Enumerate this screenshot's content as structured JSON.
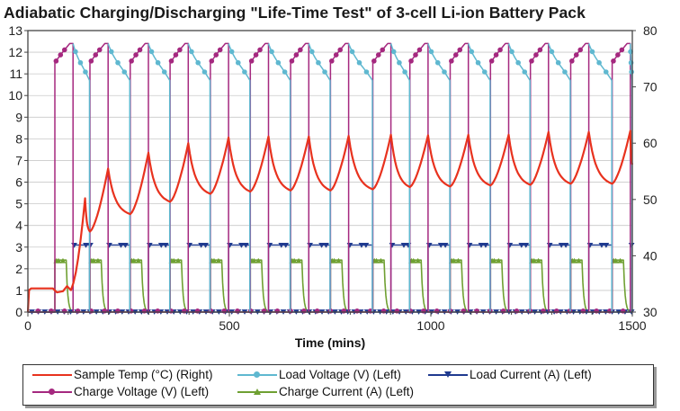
{
  "chart_data": {
    "type": "line",
    "title": "Adiabatic Charging/Discharging \"Life-Time Test\" of 3-cell Li-ion Battery Pack",
    "xlabel": "Time (mins)",
    "ylabel_left": "",
    "ylabel_right": "",
    "xlim": [
      0,
      1500
    ],
    "ylim_left": [
      0,
      13
    ],
    "ylim_right": [
      30,
      80
    ],
    "x_ticks": [
      0,
      500,
      1000,
      1500
    ],
    "y_ticks_left": [
      0,
      1,
      2,
      3,
      4,
      5,
      6,
      7,
      8,
      9,
      10,
      11,
      12,
      13
    ],
    "y_ticks_right": [
      30,
      40,
      50,
      60,
      70,
      80
    ],
    "x_minor_ticks": [
      100,
      200,
      300,
      400,
      600,
      700,
      800,
      900,
      1100,
      1200,
      1300,
      1400
    ],
    "grid": "horizontal",
    "legend_position": "bottom",
    "cycle_period_min": 99.5,
    "charge_duration_min": 45,
    "cycle_starts": [
      67,
      154,
      254,
      353,
      453,
      552,
      652,
      751,
      856,
      948,
      1048,
      1148,
      1247,
      1347,
      1450
    ],
    "temp_initial_c": 34.2,
    "temp_cycle_peaks_c": [
      50.2,
      55.5,
      58.3,
      60.0,
      61.0,
      61.2,
      61.2,
      61.3,
      61.5,
      61.4,
      61.5,
      61.5,
      62.0,
      62.0,
      62.2
    ],
    "temp_cycle_mins_c": [
      33.5,
      44.3,
      47.4,
      49.6,
      51.0,
      51.4,
      51.6,
      51.6,
      51.8,
      52.2,
      52.3,
      52.5,
      52.6,
      52.8,
      52.8
    ],
    "temp_end_c": 56.2,
    "charge_current_a": 2.4,
    "load_current_a": 3.1,
    "charge_voltage_start_v": 11.5,
    "charge_voltage_end_v": 12.4,
    "load_voltage_start_v": 12.4,
    "load_voltage_end_v": 10.7,
    "series": [
      {
        "name": "Sample Temp (°C) (Right)",
        "axis": "right",
        "color": "#e8321e",
        "marker": "none"
      },
      {
        "name": "Load Voltage (V) (Left)",
        "axis": "left",
        "color": "#5fb8d0",
        "marker": "circle"
      },
      {
        "name": "Load Current (A) (Left)",
        "axis": "left",
        "color": "#1f3a8f",
        "marker": "triangle-down"
      },
      {
        "name": "Charge Voltage (V) (Left)",
        "axis": "left",
        "color": "#a5287f",
        "marker": "circle"
      },
      {
        "name": "Charge Current (A) (Left)",
        "axis": "left",
        "color": "#6fa032",
        "marker": "triangle-up"
      }
    ]
  }
}
